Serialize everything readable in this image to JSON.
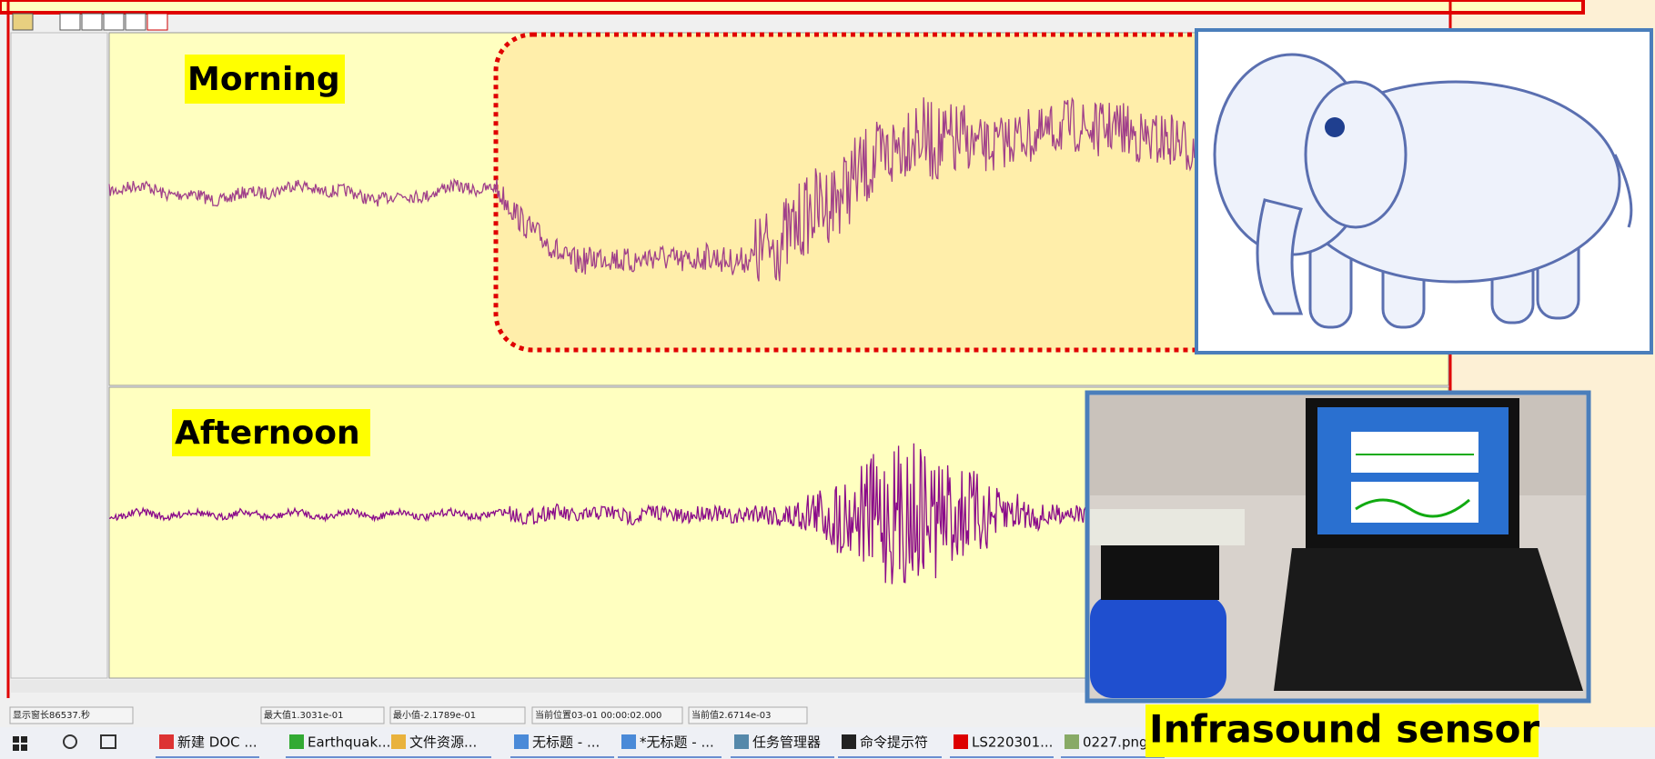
{
  "panels": {
    "morning": "Morning",
    "afternoon": "Afternoon"
  },
  "sensor_label": "Infrasound sensor",
  "status_bar": [
    "显示窗长86537.秒",
    "最大值1.3031e-01",
    "最小值-2.1789e-01",
    "当前位置03-01 00:00:02.000",
    "当前值2.6714e-03"
  ],
  "taskbar": [
    "新建 DOC ...",
    "Earthquak...",
    "文件资源...",
    "无标题 - ...",
    "*无标题 - ...",
    "任务管理器",
    "命令提示符",
    "LS220301...",
    "0227.png"
  ]
}
